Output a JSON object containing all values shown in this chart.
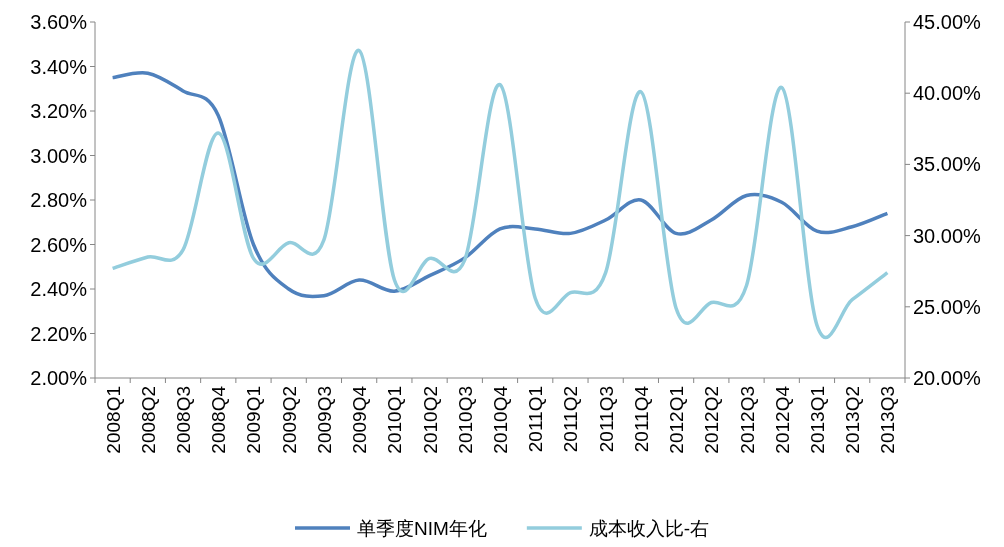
{
  "chart_data": {
    "type": "line",
    "categories": [
      "2008Q1",
      "2008Q2",
      "2008Q3",
      "2008Q4",
      "2009Q1",
      "2009Q2",
      "2009Q3",
      "2009Q4",
      "2010Q1",
      "2010Q2",
      "2010Q3",
      "2010Q4",
      "2011Q1",
      "2011Q2",
      "2011Q3",
      "2011Q4",
      "2012Q1",
      "2012Q2",
      "2012Q3",
      "2012Q4",
      "2013Q1",
      "2013Q2",
      "2013Q3"
    ],
    "series": [
      {
        "name": "单季度NIM年化",
        "color": "#4f81bd",
        "values": [
          3.35,
          3.37,
          3.29,
          3.18,
          2.6,
          2.4,
          2.37,
          2.44,
          2.39,
          2.46,
          2.54,
          2.67,
          2.67,
          2.65,
          2.71,
          2.8,
          2.65,
          2.71,
          2.82,
          2.79,
          2.66,
          2.68,
          2.74
        ]
      },
      {
        "name": "成本收入比-右",
        "color": "#93cddd",
        "axis": "y2",
        "values": [
          27.7,
          28.5,
          29.0,
          37.2,
          28.4,
          29.5,
          29.7,
          43.0,
          26.9,
          28.4,
          28.3,
          40.6,
          25.6,
          26.0,
          27.4,
          40.1,
          24.9,
          25.3,
          26.5,
          40.4,
          23.7,
          25.5,
          27.4
        ]
      }
    ],
    "ylim": [
      2.0,
      3.6
    ],
    "yticks": [
      {
        "value": 2.0,
        "label": "2.00%"
      },
      {
        "value": 2.2,
        "label": "2.20%"
      },
      {
        "value": 2.4,
        "label": "2.40%"
      },
      {
        "value": 2.6,
        "label": "2.60%"
      },
      {
        "value": 2.8,
        "label": "2.80%"
      },
      {
        "value": 3.0,
        "label": "3.00%"
      },
      {
        "value": 3.2,
        "label": "3.20%"
      },
      {
        "value": 3.4,
        "label": "3.40%"
      },
      {
        "value": 3.6,
        "label": "3.60%"
      }
    ],
    "y2lim": [
      20,
      45
    ],
    "y2ticks": [
      {
        "value": 20,
        "label": "20.00%"
      },
      {
        "value": 25,
        "label": "25.00%"
      },
      {
        "value": 30,
        "label": "30.00%"
      },
      {
        "value": 35,
        "label": "35.00%"
      },
      {
        "value": 40,
        "label": "40.00%"
      },
      {
        "value": 45,
        "label": "45.00%"
      }
    ],
    "grid": false,
    "legend": "bottom",
    "marker": "none",
    "line_style": "solid"
  }
}
